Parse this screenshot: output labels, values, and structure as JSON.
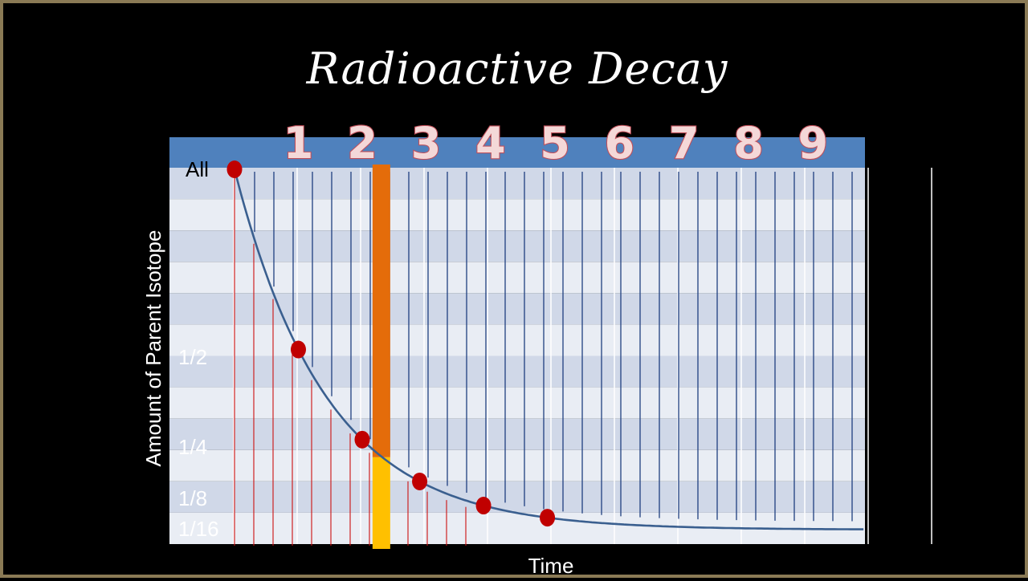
{
  "slide": {
    "title": "Radioactive Decay",
    "colors": {
      "background": "#000000",
      "frame": "#8a7a55",
      "header_band": "#4f81bd",
      "stripe_dark": "#d0d8e8",
      "stripe_light": "#e9edf4",
      "curve": "#3a5f8f",
      "points": "#c00000",
      "time_lines": "#1f3f7f",
      "drop_lines": "#cc1010",
      "marker_top": "#e46c0a",
      "marker_bottom": "#ffc000"
    }
  },
  "chart_data": {
    "type": "line",
    "title": "Radioactive Decay",
    "xlabel": "Time",
    "ylabel": "Amount of Parent Isotope",
    "half_life_labels": [
      "1",
      "2",
      "3",
      "4",
      "5",
      "6",
      "7",
      "8",
      "9"
    ],
    "y_tick_labels": [
      {
        "label": "All",
        "value": 1
      },
      {
        "label": "1/2",
        "value": 0.5
      },
      {
        "label": "1/4",
        "value": 0.25
      },
      {
        "label": "1/8",
        "value": 0.125
      },
      {
        "label": "1/16",
        "value": 0.0625
      }
    ],
    "points": [
      {
        "x": 0,
        "y": 1
      },
      {
        "x": 1,
        "y": 0.5
      },
      {
        "x": 2,
        "y": 0.25
      },
      {
        "x": 2.9,
        "y": 0.125
      },
      {
        "x": 3.9,
        "y": 0.0625
      },
      {
        "x": 4.9,
        "y": 0.03125
      }
    ],
    "xlim": [
      -1,
      10
    ],
    "ylim": [
      0,
      1.02
    ],
    "marker": {
      "x": 2.3,
      "split_y": 0.225
    }
  }
}
